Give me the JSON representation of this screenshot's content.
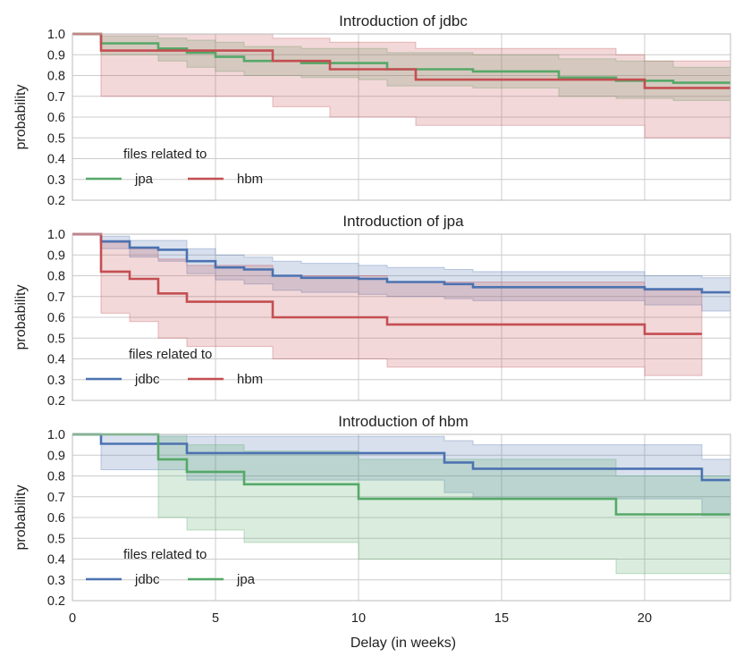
{
  "chart_data": [
    {
      "type": "line",
      "title": "Introduction of jdbc",
      "ylabel": "probability",
      "xlabel": "",
      "xlim": [
        0,
        23
      ],
      "ylim": [
        0.2,
        1.0
      ],
      "yticks": [
        "0.2",
        "0.3",
        "0.4",
        "0.5",
        "0.6",
        "0.7",
        "0.8",
        "0.9",
        "1.0"
      ],
      "legend": {
        "title": "files related to",
        "position": "lower-left"
      },
      "series": [
        {
          "name": "jpa",
          "color": "#55a868",
          "x": [
            0,
            1,
            3,
            4,
            5,
            6,
            8,
            10,
            11,
            14,
            17,
            19,
            21,
            23
          ],
          "y": [
            1.0,
            0.955,
            0.93,
            0.91,
            0.89,
            0.87,
            0.86,
            0.86,
            0.83,
            0.82,
            0.79,
            0.775,
            0.765,
            0.765
          ],
          "lower": [
            1.0,
            0.9,
            0.87,
            0.84,
            0.82,
            0.8,
            0.79,
            0.78,
            0.75,
            0.74,
            0.7,
            0.69,
            0.68,
            0.68
          ],
          "upper": [
            1.0,
            0.99,
            0.98,
            0.97,
            0.96,
            0.94,
            0.93,
            0.93,
            0.91,
            0.9,
            0.88,
            0.87,
            0.84,
            0.84
          ]
        },
        {
          "name": "hbm",
          "color": "#c44e52",
          "x": [
            0,
            1,
            4,
            7,
            9,
            12,
            19,
            20,
            23
          ],
          "y": [
            1.0,
            0.92,
            0.92,
            0.87,
            0.83,
            0.78,
            0.78,
            0.74,
            0.74
          ],
          "lower": [
            1.0,
            0.7,
            0.7,
            0.65,
            0.6,
            0.56,
            0.56,
            0.5,
            0.5
          ],
          "upper": [
            1.0,
            1.0,
            1.0,
            0.98,
            0.96,
            0.93,
            0.9,
            0.87,
            0.87
          ]
        }
      ]
    },
    {
      "type": "line",
      "title": "Introduction of jpa",
      "ylabel": "probability",
      "xlabel": "",
      "xlim": [
        0,
        23
      ],
      "ylim": [
        0.2,
        1.0
      ],
      "yticks": [
        "0.2",
        "0.3",
        "0.4",
        "0.5",
        "0.6",
        "0.7",
        "0.8",
        "0.9",
        "1.0"
      ],
      "legend": {
        "title": "files related to",
        "position": "lower-left"
      },
      "series": [
        {
          "name": "jdbc",
          "color": "#4c72b0",
          "x": [
            0,
            1,
            2,
            3,
            4,
            5,
            6,
            7,
            8,
            10,
            11,
            13,
            14,
            20,
            22,
            23
          ],
          "y": [
            1.0,
            0.965,
            0.935,
            0.925,
            0.87,
            0.84,
            0.83,
            0.8,
            0.79,
            0.785,
            0.77,
            0.76,
            0.745,
            0.735,
            0.72,
            0.72
          ],
          "lower": [
            1.0,
            0.93,
            0.89,
            0.87,
            0.81,
            0.78,
            0.76,
            0.73,
            0.72,
            0.71,
            0.7,
            0.69,
            0.68,
            0.66,
            0.63,
            0.63
          ],
          "upper": [
            1.0,
            0.99,
            0.97,
            0.97,
            0.93,
            0.9,
            0.89,
            0.87,
            0.86,
            0.85,
            0.84,
            0.83,
            0.82,
            0.8,
            0.79,
            0.79
          ]
        },
        {
          "name": "hbm",
          "color": "#c44e52",
          "x": [
            0,
            1,
            2,
            3,
            4,
            7,
            11,
            20,
            22
          ],
          "y": [
            1.0,
            0.82,
            0.785,
            0.715,
            0.675,
            0.6,
            0.565,
            0.52,
            0.52
          ],
          "lower": [
            1.0,
            0.62,
            0.58,
            0.5,
            0.46,
            0.4,
            0.36,
            0.32,
            0.32
          ],
          "upper": [
            1.0,
            0.96,
            0.93,
            0.88,
            0.85,
            0.8,
            0.77,
            0.73,
            0.73
          ]
        }
      ]
    },
    {
      "type": "line",
      "title": "Introduction of hbm",
      "ylabel": "probability",
      "xlabel": "Delay (in weeks)",
      "xlim": [
        0,
        23
      ],
      "ylim": [
        0.2,
        1.0
      ],
      "xticks": [
        "0",
        "5",
        "10",
        "15",
        "20"
      ],
      "yticks": [
        "0.2",
        "0.3",
        "0.4",
        "0.5",
        "0.6",
        "0.7",
        "0.8",
        "0.9",
        "1.0"
      ],
      "legend": {
        "title": "files related to",
        "position": "lower-left"
      },
      "series": [
        {
          "name": "jdbc",
          "color": "#4c72b0",
          "x": [
            0,
            1,
            3,
            4,
            13,
            14,
            22,
            23
          ],
          "y": [
            1.0,
            0.955,
            0.955,
            0.91,
            0.865,
            0.835,
            0.78,
            0.78
          ],
          "lower": [
            1.0,
            0.83,
            0.83,
            0.78,
            0.72,
            0.69,
            0.61,
            0.61
          ],
          "upper": [
            1.0,
            1.0,
            1.0,
            0.99,
            0.97,
            0.95,
            0.88,
            0.88
          ]
        },
        {
          "name": "jpa",
          "color": "#55a868",
          "x": [
            0,
            3,
            4,
            6,
            10,
            19,
            23
          ],
          "y": [
            1.0,
            0.88,
            0.82,
            0.76,
            0.69,
            0.615,
            0.615
          ],
          "lower": [
            1.0,
            0.6,
            0.54,
            0.48,
            0.4,
            0.33,
            0.33
          ],
          "upper": [
            1.0,
            0.99,
            0.95,
            0.92,
            0.88,
            0.8,
            0.8
          ]
        }
      ]
    }
  ]
}
